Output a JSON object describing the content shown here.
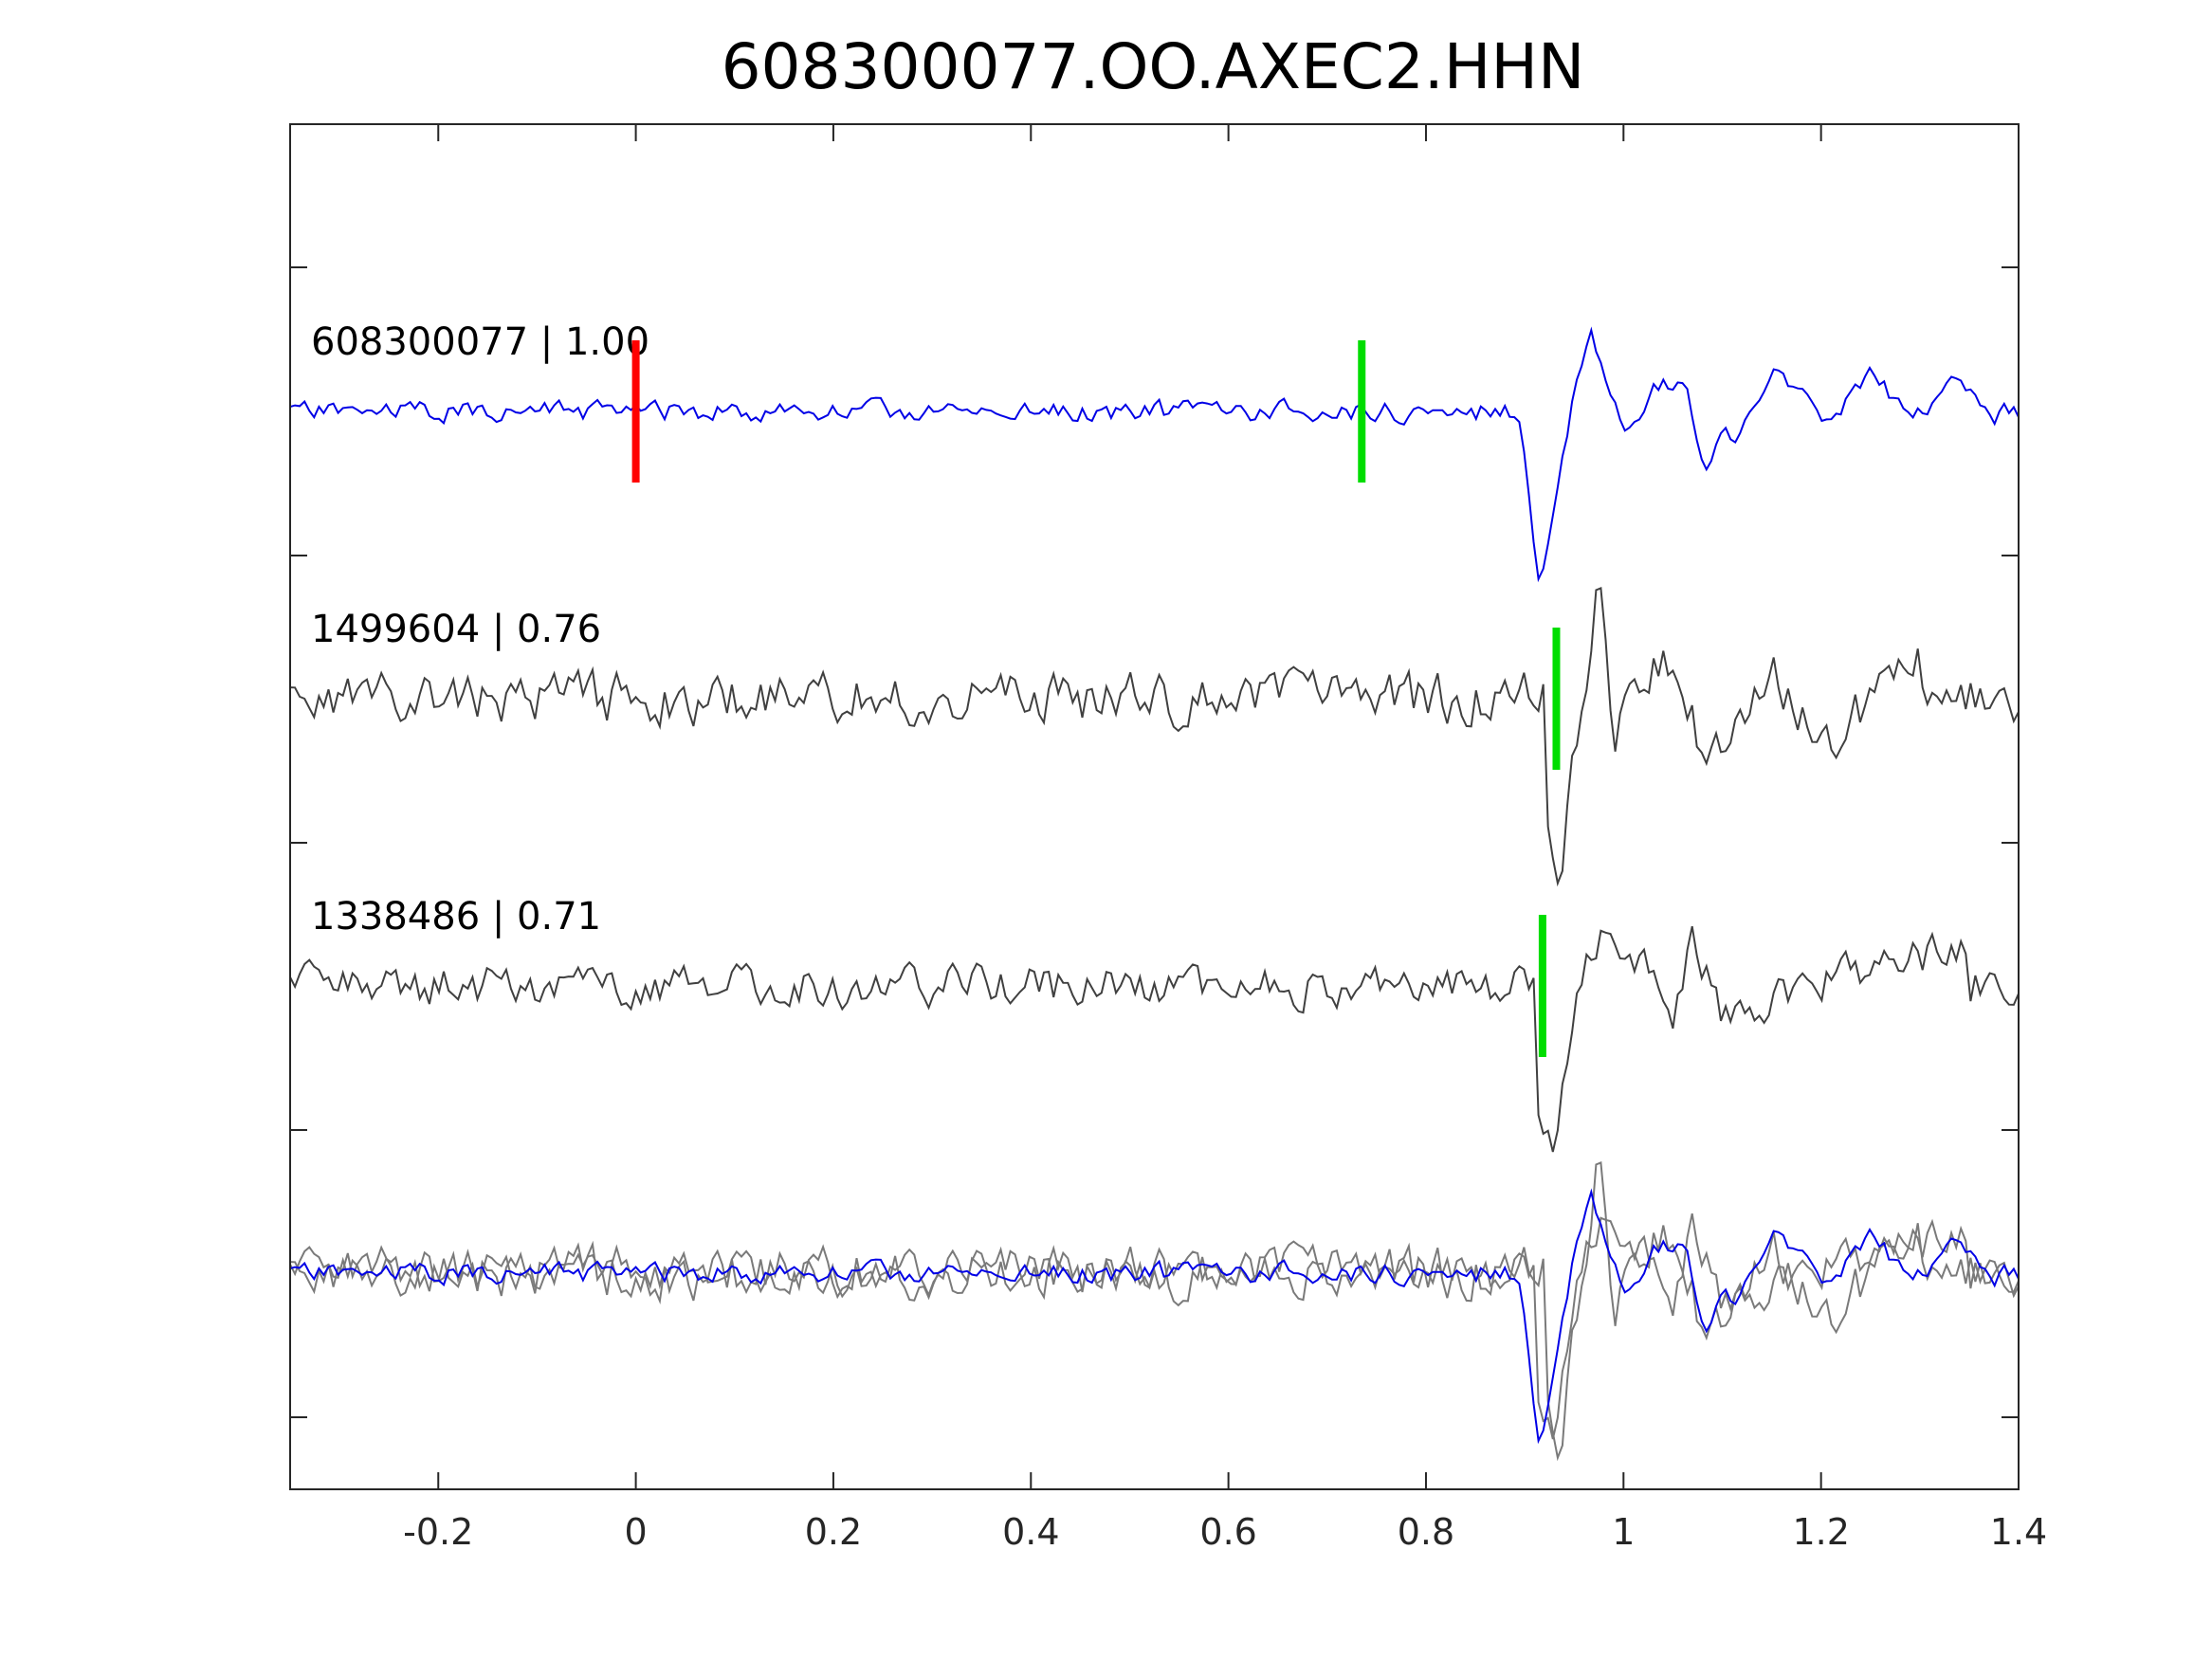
{
  "chart_data": {
    "type": "line",
    "title": "608300077.OO.AXEC2.HHN",
    "xlim": [
      -0.35,
      1.4
    ],
    "xticks": [
      "-0.2",
      "0",
      "0.2",
      "0.4",
      "0.6",
      "0.8",
      "1",
      "1.2",
      "1.4"
    ],
    "xtick_values": [
      -0.2,
      0,
      0.2,
      0.4,
      0.6,
      0.8,
      1.0,
      1.2,
      1.4
    ],
    "xlabel": "",
    "ylabel": "",
    "grid": false,
    "colors": {
      "reference": "#0000e6",
      "neighbor": "#404040",
      "stack_neighbor": "#7a7a7a",
      "red_pick": "#ff0000",
      "green_pick": "#00dd00",
      "axes": "#262626"
    },
    "series": [
      {
        "name": "608300077 | 1.00",
        "label_text": "608300077 | 1.00",
        "color": "#0000e6",
        "seed": 11,
        "noise": 0.1,
        "red_pick": 0.0,
        "green_pick": 0.735,
        "event": [
          [
            0.895,
            0.02
          ],
          [
            0.912,
            1.0
          ],
          [
            0.92,
            0.98
          ],
          [
            0.94,
            0.2
          ],
          [
            0.965,
            -0.55
          ],
          [
            0.99,
            -0.1
          ],
          [
            1.005,
            0.15
          ],
          [
            1.03,
            -0.15
          ],
          [
            1.06,
            -0.2
          ],
          [
            1.085,
            0.35
          ],
          [
            1.1,
            0.05
          ],
          [
            1.115,
            0.25
          ],
          [
            1.15,
            -0.3
          ],
          [
            1.17,
            -0.15
          ],
          [
            1.2,
            0.05
          ],
          [
            1.25,
            -0.2
          ],
          [
            1.3,
            0.02
          ],
          [
            1.335,
            -0.2
          ],
          [
            1.38,
            0.05
          ]
        ]
      },
      {
        "name": "1499604 | 0.76",
        "label_text": "1499604 | 0.76",
        "color": "#404040",
        "seed": 23,
        "noise": 0.25,
        "green_pick": 0.932,
        "event": [
          [
            0.92,
            0.9
          ],
          [
            0.935,
            1.1
          ],
          [
            0.958,
            0.0
          ],
          [
            0.975,
            -0.7
          ],
          [
            0.99,
            0.3
          ],
          [
            1.01,
            -0.1
          ],
          [
            1.04,
            -0.2
          ],
          [
            1.09,
            0.4
          ],
          [
            1.15,
            -0.2
          ],
          [
            1.2,
            0.3
          ],
          [
            1.3,
            -0.2
          ]
        ]
      },
      {
        "name": "1338486 | 0.71",
        "label_text": "1338486 | 0.71",
        "color": "#404040",
        "seed": 37,
        "noise": 0.2,
        "green_pick": 0.918,
        "event": [
          [
            0.91,
            0.7
          ],
          [
            0.93,
            1.1
          ],
          [
            0.955,
            0.0
          ],
          [
            0.975,
            -0.35
          ],
          [
            1.0,
            -0.3
          ],
          [
            1.05,
            0.15
          ],
          [
            1.07,
            -0.3
          ],
          [
            1.1,
            0.2
          ],
          [
            1.2,
            -0.05
          ],
          [
            1.35,
            -0.25
          ]
        ]
      }
    ],
    "stack": {
      "description_free": true,
      "members": [
        "608300077 | 1.00",
        "1499604 | 0.76",
        "1338486 | 0.71"
      ]
    }
  }
}
